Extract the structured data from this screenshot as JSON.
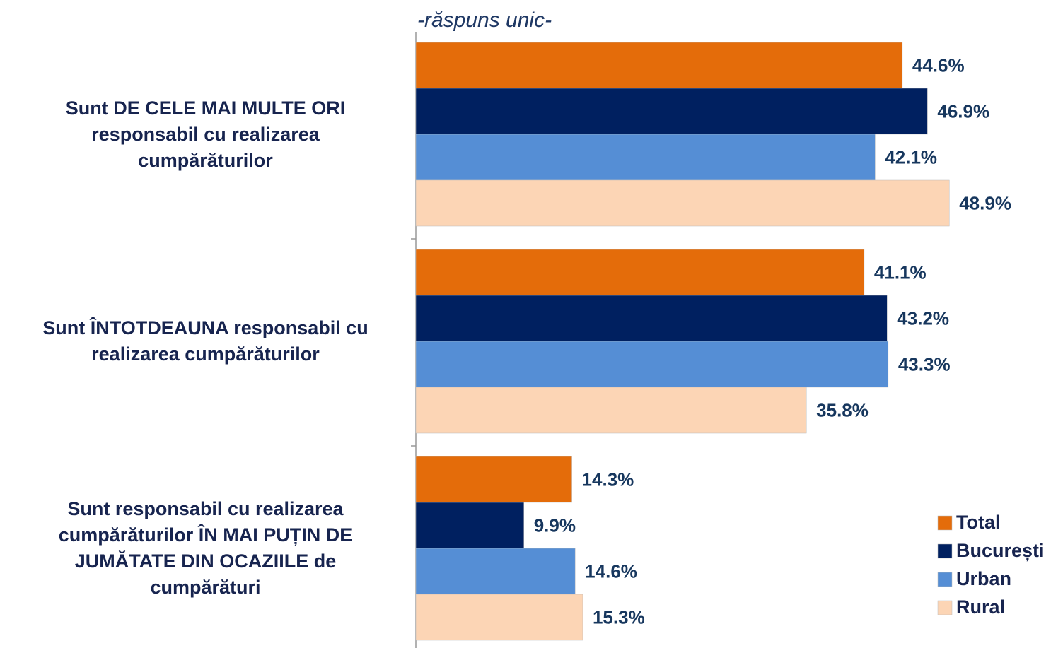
{
  "chart_data": {
    "type": "bar",
    "orientation": "horizontal",
    "subtitle": "-răspuns unic-",
    "categories": [
      "Sunt DE CELE MAI MULTE ORI\nresponsabil cu realizarea\ncumpărăturilor",
      "Sunt ÎNTOTDEAUNA responsabil cu\nrealizarea cumpărăturilor",
      "Sunt responsabil cu realizarea\ncumpărăturilor ÎN MAI PUȚIN DE\nJUMĂTATE DIN OCAZIILE de\ncumpărături"
    ],
    "series": [
      {
        "name": "Total",
        "color": "#e46c0a",
        "values": [
          44.6,
          41.1,
          14.3
        ],
        "value_labels": [
          "44.6%",
          "41.1%",
          "14.3%"
        ]
      },
      {
        "name": "București",
        "color": "#002060",
        "values": [
          46.9,
          43.2,
          9.9
        ],
        "value_labels": [
          "46.9%",
          "43.2%",
          "9.9%"
        ]
      },
      {
        "name": "Urban",
        "color": "#558ed5",
        "values": [
          42.1,
          43.3,
          14.6
        ],
        "value_labels": [
          "42.1%",
          "43.3%",
          "14.6%"
        ]
      },
      {
        "name": "Rural",
        "color": "#fcd5b5",
        "values": [
          48.9,
          35.8,
          15.3
        ],
        "value_labels": [
          "48.9%",
          "35.8%",
          "15.3%"
        ]
      }
    ],
    "xlim": [
      0,
      59
    ],
    "legend": "lower right"
  }
}
